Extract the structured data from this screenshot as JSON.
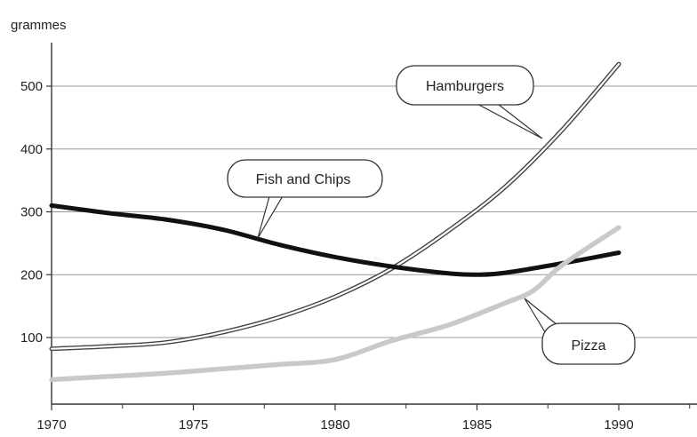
{
  "chart_data": {
    "type": "line",
    "title": "",
    "xlabel": "",
    "ylabel": "grammes",
    "xlim": [
      1970,
      1993
    ],
    "ylim": [
      0,
      560
    ],
    "xticks": [
      1970,
      1975,
      1980,
      1985,
      1990
    ],
    "yticks": [
      100,
      200,
      300,
      400,
      500
    ],
    "grid": "horizontal",
    "series": [
      {
        "name": "Hamburgers",
        "color": "#ffffff",
        "x": [
          1970,
          1972,
          1974,
          1976,
          1978,
          1980,
          1982,
          1984,
          1986,
          1988,
          1990
        ],
        "y": [
          82,
          86,
          92,
          108,
          132,
          165,
          210,
          270,
          340,
          430,
          535
        ]
      },
      {
        "name": "Fish and Chips",
        "color": "#111111",
        "x": [
          1970,
          1972,
          1974,
          1976,
          1978,
          1980,
          1982,
          1984,
          1985,
          1986,
          1988,
          1990
        ],
        "y": [
          310,
          298,
          288,
          272,
          248,
          228,
          213,
          202,
          200,
          203,
          218,
          235
        ]
      },
      {
        "name": "Pizza",
        "color": "#c9c9c9",
        "x": [
          1970,
          1972,
          1974,
          1976,
          1978,
          1980,
          1982,
          1984,
          1986,
          1987,
          1988,
          1990
        ],
        "y": [
          33,
          38,
          43,
          50,
          57,
          65,
          95,
          120,
          155,
          175,
          215,
          275
        ]
      }
    ]
  }
}
